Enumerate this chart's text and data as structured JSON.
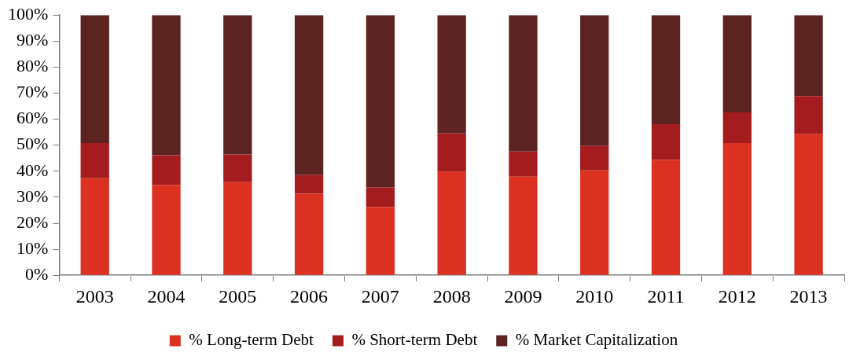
{
  "chart_data": {
    "type": "bar",
    "stacked": true,
    "categories": [
      "2003",
      "2004",
      "2005",
      "2006",
      "2007",
      "2008",
      "2009",
      "2010",
      "2011",
      "2012",
      "2013"
    ],
    "series": [
      {
        "name": "% Long-term Debt",
        "color": "#dc3020",
        "values": [
          37.3,
          34.7,
          35.8,
          31.3,
          26.3,
          39.7,
          37.9,
          40.3,
          44.3,
          50.8,
          54.2
        ]
      },
      {
        "name": "% Short-term Debt",
        "color": "#a41c1e",
        "values": [
          13.5,
          11.4,
          10.6,
          7.2,
          7.5,
          14.8,
          9.7,
          9.4,
          13.8,
          11.8,
          14.7
        ]
      },
      {
        "name": "% Market Capitalization",
        "color": "#5c2320",
        "values": [
          49.2,
          53.9,
          53.6,
          61.5,
          66.2,
          45.5,
          52.4,
          50.3,
          41.9,
          37.4,
          31.1
        ]
      }
    ],
    "ylim": [
      0,
      100
    ],
    "yticks": [
      {
        "value": 0,
        "label": "0%"
      },
      {
        "value": 10,
        "label": "10%"
      },
      {
        "value": 20,
        "label": "20%"
      },
      {
        "value": 30,
        "label": "30%"
      },
      {
        "value": 40,
        "label": "40%"
      },
      {
        "value": 50,
        "label": "50%"
      },
      {
        "value": 60,
        "label": "60%"
      },
      {
        "value": 70,
        "label": "70%"
      },
      {
        "value": 80,
        "label": "80%"
      },
      {
        "value": 90,
        "label": "90%"
      },
      {
        "value": 100,
        "label": "100%"
      }
    ],
    "grid": false,
    "legend": "bottom"
  }
}
